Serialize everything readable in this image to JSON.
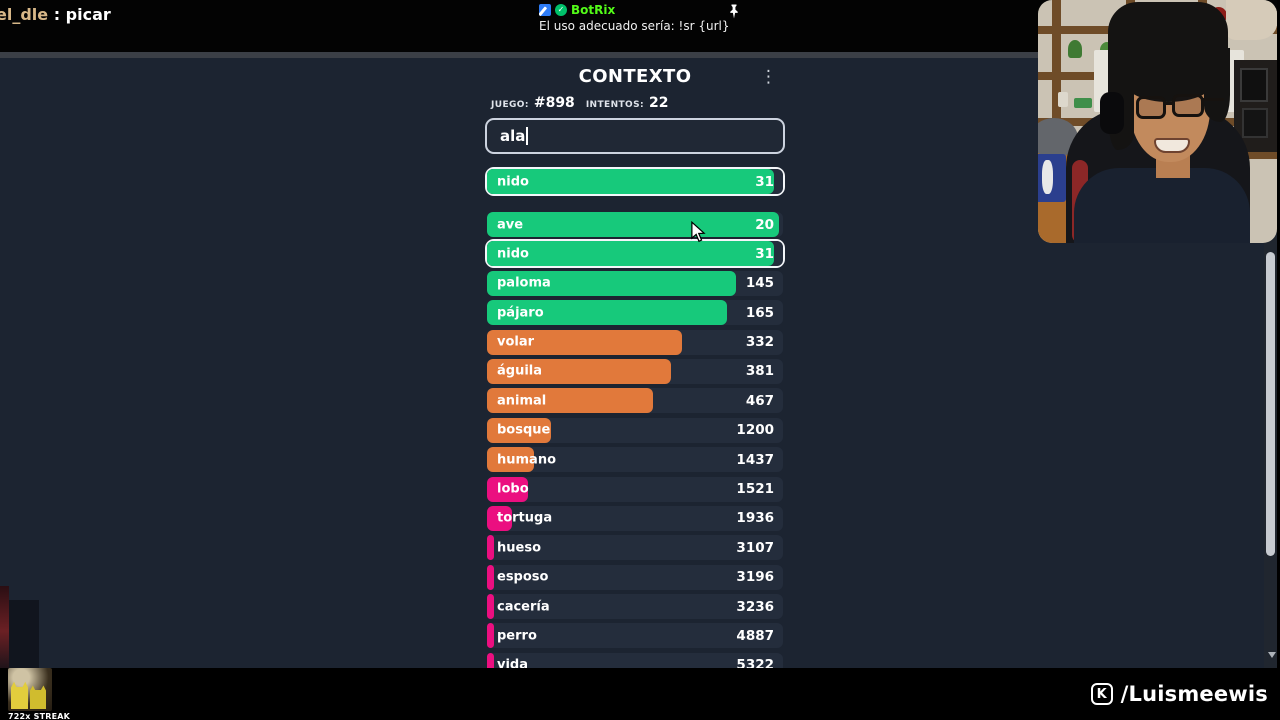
{
  "topbar": {
    "left": {
      "highlight": "el_dle",
      "rest": " : picar"
    },
    "pinned": {
      "username": "BotRix",
      "message": "El uso adecuado sería: !sr {url}"
    }
  },
  "icons": {
    "kebab": "⋮",
    "check": "✓"
  },
  "game": {
    "title": "CONTEXTO",
    "stats": {
      "game_label": "JUEGO:",
      "game_number": "#898",
      "attempts_label": "INTENTOS:",
      "attempts": "22"
    },
    "input": {
      "value": "ala"
    },
    "colors": {
      "green": "#17c97b",
      "orange": "#e1793b",
      "pink": "#eb0f80"
    },
    "latest_guess": {
      "word": "nido",
      "rank": "31",
      "color": "green",
      "width_pct": 97
    },
    "guesses": [
      {
        "word": "ave",
        "rank": "20",
        "color": "green",
        "width_pct": 98.5,
        "highlighted": false
      },
      {
        "word": "nido",
        "rank": "31",
        "color": "green",
        "width_pct": 97,
        "highlighted": true
      },
      {
        "word": "paloma",
        "rank": "145",
        "color": "green",
        "width_pct": 84,
        "highlighted": false
      },
      {
        "word": "pájaro",
        "rank": "165",
        "color": "green",
        "width_pct": 81,
        "highlighted": false
      },
      {
        "word": "volar",
        "rank": "332",
        "color": "orange",
        "width_pct": 66,
        "highlighted": false
      },
      {
        "word": "águila",
        "rank": "381",
        "color": "orange",
        "width_pct": 62,
        "highlighted": false
      },
      {
        "word": "animal",
        "rank": "467",
        "color": "orange",
        "width_pct": 56,
        "highlighted": false
      },
      {
        "word": "bosque",
        "rank": "1200",
        "color": "orange",
        "width_pct": 21.5,
        "highlighted": false
      },
      {
        "word": "humano",
        "rank": "1437",
        "color": "orange",
        "width_pct": 16,
        "highlighted": false
      },
      {
        "word": "lobo",
        "rank": "1521",
        "color": "pink",
        "width_pct": 14,
        "highlighted": false
      },
      {
        "word": "tortuga",
        "rank": "1936",
        "color": "pink",
        "width_pct": 8.5,
        "highlighted": false
      },
      {
        "word": "hueso",
        "rank": "3107",
        "color": "pink",
        "width_pct": 2.5,
        "highlighted": false
      },
      {
        "word": "esposo",
        "rank": "3196",
        "color": "pink",
        "width_pct": 2.5,
        "highlighted": false
      },
      {
        "word": "cacería",
        "rank": "3236",
        "color": "pink",
        "width_pct": 2.5,
        "highlighted": false
      },
      {
        "word": "perro",
        "rank": "4887",
        "color": "pink",
        "width_pct": 2.2,
        "highlighted": false
      },
      {
        "word": "vida",
        "rank": "5322",
        "color": "pink",
        "width_pct": 2,
        "highlighted": false
      }
    ]
  },
  "footer": {
    "streak_label": "722x STREAK",
    "watermark": {
      "logo_letter": "K",
      "handle": "/Luismeewis"
    }
  }
}
